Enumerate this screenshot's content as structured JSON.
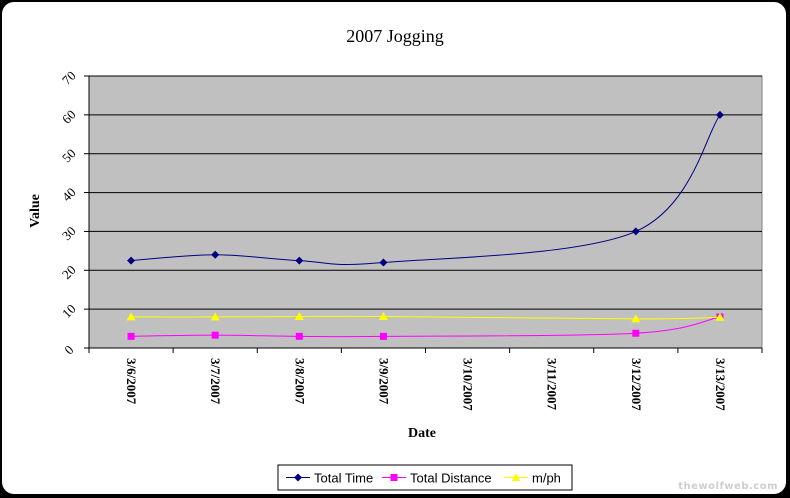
{
  "chart_data": {
    "type": "line",
    "title": "2007 Jogging",
    "xlabel": "Date",
    "ylabel": "Value",
    "categories": [
      "3/6/2007",
      "3/7/2007",
      "3/8/2007",
      "3/9/2007",
      "3/10/2007",
      "3/11/2007",
      "3/12/2007",
      "3/13/2007"
    ],
    "ylim": [
      0,
      70
    ],
    "yticks": [
      0,
      10,
      20,
      30,
      40,
      50,
      60,
      70
    ],
    "grid": true,
    "legend_position": "bottom",
    "plot_background": "#c0c0c0",
    "series": [
      {
        "name": "Total Time",
        "color": "#000080",
        "marker": "diamond",
        "points": [
          [
            "3/6/2007",
            22.5
          ],
          [
            "3/7/2007",
            24
          ],
          [
            "3/8/2007",
            22.5
          ],
          [
            "3/9/2007",
            22
          ],
          [
            "3/12/2007",
            30
          ],
          [
            "3/13/2007",
            60
          ]
        ]
      },
      {
        "name": "Total Distance",
        "color": "#ff00ff",
        "marker": "square",
        "points": [
          [
            "3/6/2007",
            3
          ],
          [
            "3/7/2007",
            3.3
          ],
          [
            "3/8/2007",
            3
          ],
          [
            "3/9/2007",
            3
          ],
          [
            "3/12/2007",
            3.8
          ],
          [
            "3/13/2007",
            8
          ]
        ]
      },
      {
        "name": "m/ph",
        "color": "#ffff00",
        "marker": "triangle",
        "points": [
          [
            "3/6/2007",
            8
          ],
          [
            "3/7/2007",
            8
          ],
          [
            "3/8/2007",
            8.1
          ],
          [
            "3/9/2007",
            8.1
          ],
          [
            "3/12/2007",
            7.5
          ],
          [
            "3/13/2007",
            7.9
          ]
        ]
      }
    ]
  },
  "watermark": "thewolfweb.com"
}
